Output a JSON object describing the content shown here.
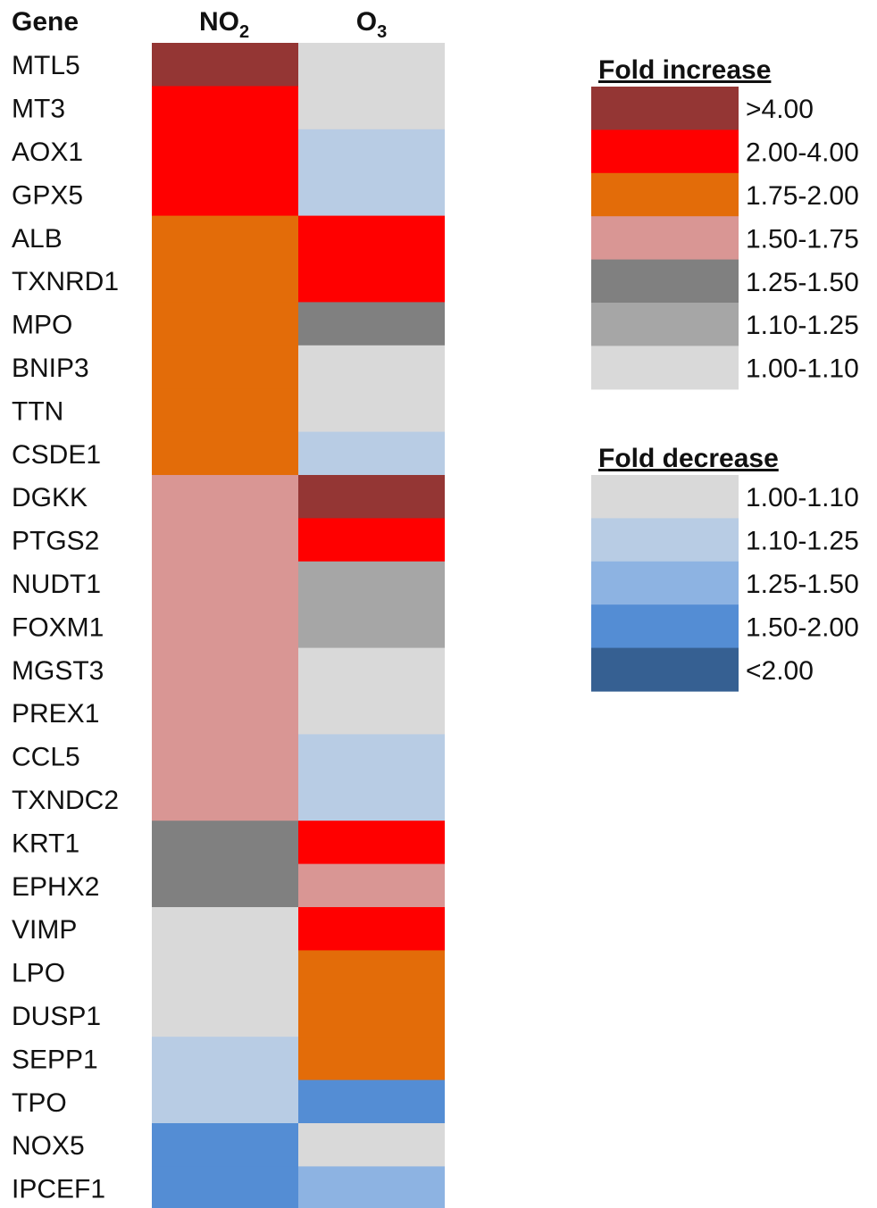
{
  "chart_data": {
    "type": "heatmap",
    "row_header": "Gene",
    "columns": [
      {
        "name": "NO",
        "subscript": "2"
      },
      {
        "name": "O",
        "subscript": "3"
      }
    ],
    "genes": [
      "MTL5",
      "MT3",
      "AOX1",
      "GPX5",
      "ALB",
      "TXNRD1",
      "MPO",
      "BNIP3",
      "TTN",
      "CSDE1",
      "DGKK",
      "PTGS2",
      "NUDT1",
      "FOXM1",
      "MGST3",
      "PREX1",
      "CCL5",
      "TXNDC2",
      "KRT1",
      "EPHX2",
      "VIMP",
      "LPO",
      "DUSP1",
      "SEPP1",
      "TPO",
      "NOX5",
      "IPCEF1"
    ],
    "categories": {
      "inc_gt4": "#943634",
      "inc_2_4": "#ff0000",
      "inc_175_2": "#e36c09",
      "inc_150_175": "#d99694",
      "inc_125_150": "#808080",
      "inc_110_125": "#a6a6a6",
      "inc_100_110": "#d9d9d9",
      "dec_100_110": "#d9d9d9",
      "dec_110_125": "#b8cce4",
      "dec_125_150": "#8db3e2",
      "dec_150_200": "#548dd4",
      "dec_lt2": "#366092"
    },
    "values": {
      "NO2": [
        "inc_gt4",
        "inc_2_4",
        "inc_2_4",
        "inc_2_4",
        "inc_175_2",
        "inc_175_2",
        "inc_175_2",
        "inc_175_2",
        "inc_175_2",
        "inc_175_2",
        "inc_150_175",
        "inc_150_175",
        "inc_150_175",
        "inc_150_175",
        "inc_150_175",
        "inc_150_175",
        "inc_150_175",
        "inc_150_175",
        "inc_125_150",
        "inc_125_150",
        "inc_100_110",
        "inc_100_110",
        "inc_100_110",
        "dec_110_125",
        "dec_110_125",
        "dec_150_200",
        "dec_150_200"
      ],
      "O3": [
        "inc_100_110",
        "inc_100_110",
        "dec_110_125",
        "dec_110_125",
        "inc_2_4",
        "inc_2_4",
        "inc_125_150",
        "inc_100_110",
        "inc_100_110",
        "dec_110_125",
        "inc_gt4",
        "inc_2_4",
        "inc_110_125",
        "inc_110_125",
        "inc_100_110",
        "inc_100_110",
        "dec_110_125",
        "dec_110_125",
        "inc_2_4",
        "inc_150_175",
        "inc_2_4",
        "inc_175_2",
        "inc_175_2",
        "inc_175_2",
        "dec_150_200",
        "inc_100_110",
        "dec_125_150"
      ]
    },
    "legend_increase": {
      "title": "Fold increase",
      "items": [
        {
          "label": ">4.00",
          "key": "inc_gt4"
        },
        {
          "label": "2.00-4.00",
          "key": "inc_2_4"
        },
        {
          "label": "1.75-2.00",
          "key": "inc_175_2"
        },
        {
          "label": "1.50-1.75",
          "key": "inc_150_175"
        },
        {
          "label": "1.25-1.50",
          "key": "inc_125_150"
        },
        {
          "label": "1.10-1.25",
          "key": "inc_110_125"
        },
        {
          "label": "1.00-1.10",
          "key": "inc_100_110"
        }
      ]
    },
    "legend_decrease": {
      "title": "Fold decrease",
      "items": [
        {
          "label": "1.00-1.10",
          "key": "dec_100_110"
        },
        {
          "label": "1.10-1.25",
          "key": "dec_110_125"
        },
        {
          "label": "1.25-1.50",
          "key": "dec_125_150"
        },
        {
          "label": "1.50-2.00",
          "key": "dec_150_200"
        },
        {
          "label": "<2.00",
          "key": "dec_lt2"
        }
      ]
    }
  }
}
